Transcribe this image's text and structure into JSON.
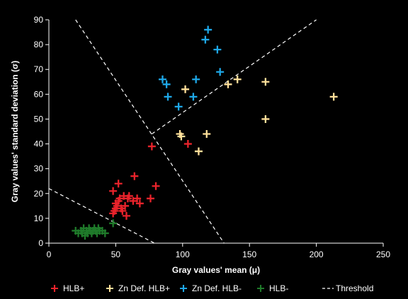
{
  "chart_data": {
    "type": "scatter",
    "xlabel": "Gray values' mean (μ)",
    "ylabel": "Gray values' standard deviation (σ)",
    "xlim": [
      0,
      250
    ],
    "ylim": [
      0,
      90
    ],
    "xticks": [
      "0",
      "50",
      "100",
      "150",
      "200",
      "250"
    ],
    "yticks": [
      "0",
      "10",
      "20",
      "30",
      "40",
      "50",
      "60",
      "70",
      "80",
      "90"
    ],
    "grid": false,
    "legend_position": "bottom",
    "series": [
      {
        "name": "HLB+",
        "color": "#e8232b",
        "marker": "plus",
        "points": [
          [
            48,
            21
          ],
          [
            49,
            13
          ],
          [
            50,
            14
          ],
          [
            51,
            15
          ],
          [
            52,
            24
          ],
          [
            53,
            18
          ],
          [
            54,
            14
          ],
          [
            55,
            13
          ],
          [
            56,
            19
          ],
          [
            57,
            15
          ],
          [
            58,
            11
          ],
          [
            59,
            18
          ],
          [
            60,
            19
          ],
          [
            63,
            17
          ],
          [
            64,
            27
          ],
          [
            66,
            18
          ],
          [
            68,
            16
          ],
          [
            76,
            18
          ],
          [
            77,
            39
          ],
          [
            80,
            23
          ],
          [
            104,
            40
          ],
          [
            48,
            12
          ],
          [
            50,
            16
          ],
          [
            52,
            17
          ]
        ]
      },
      {
        "name": "Zn Def. HLB+",
        "color": "#ffe09a",
        "marker": "plus",
        "points": [
          [
            98,
            44
          ],
          [
            99,
            43
          ],
          [
            102,
            62
          ],
          [
            112,
            37
          ],
          [
            118,
            44
          ],
          [
            134,
            64
          ],
          [
            141,
            66
          ],
          [
            162,
            65
          ],
          [
            162,
            50
          ],
          [
            213,
            59
          ]
        ]
      },
      {
        "name": "Zn Def. HLB-",
        "color": "#1ea8e8",
        "marker": "plus",
        "points": [
          [
            85,
            66
          ],
          [
            88,
            64
          ],
          [
            89,
            59
          ],
          [
            97,
            55
          ],
          [
            108,
            59
          ],
          [
            110,
            66
          ],
          [
            117,
            82
          ],
          [
            119,
            86
          ],
          [
            126,
            78
          ],
          [
            128,
            69
          ]
        ]
      },
      {
        "name": "HLB-",
        "color": "#1f7a2a",
        "marker": "plus",
        "points": [
          [
            20,
            5
          ],
          [
            22,
            4
          ],
          [
            24,
            5
          ],
          [
            25,
            4
          ],
          [
            26,
            6
          ],
          [
            27,
            3
          ],
          [
            28,
            5
          ],
          [
            29,
            4
          ],
          [
            30,
            6
          ],
          [
            31,
            5
          ],
          [
            32,
            4
          ],
          [
            33,
            5
          ],
          [
            34,
            6
          ],
          [
            35,
            5
          ],
          [
            36,
            4
          ],
          [
            37,
            6
          ],
          [
            38,
            5
          ],
          [
            40,
            5
          ],
          [
            42,
            4
          ],
          [
            48,
            8
          ]
        ]
      }
    ],
    "threshold": {
      "name": "Threshold",
      "color": "#ffffff",
      "style": "dashed",
      "lines": [
        [
          [
            20,
            90
          ],
          [
            131,
            0
          ]
        ],
        [
          [
            0,
            22
          ],
          [
            79,
            0
          ]
        ],
        [
          [
            77,
            44
          ],
          [
            200,
            90
          ]
        ]
      ]
    }
  }
}
